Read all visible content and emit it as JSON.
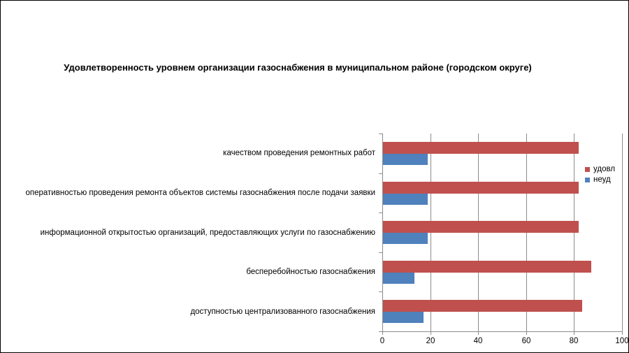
{
  "window": {
    "background": "#ffffff",
    "border_color": "#000000"
  },
  "chart_data": {
    "type": "bar",
    "orientation": "horizontal",
    "title": "Удовлетворенность уровнем организации газоснабжения в муниципальном районе (городском округе)",
    "categories": [
      "качеством проведения ремонтных работ",
      "оперативностью проведения ремонта объектов системы газоснабжения после подачи заявки",
      "информационной открытостью организаций, предоставляющих услуги по газоснабжению",
      "бесперебойностью газоснабжения",
      "доступностью централизованного газоснабжения"
    ],
    "series": [
      {
        "name": "удовл",
        "color": "#c0504d",
        "values": [
          81.5,
          81.5,
          81.5,
          87,
          83
        ]
      },
      {
        "name": "неуд",
        "color": "#4f81bd",
        "values": [
          18.5,
          18.5,
          18.5,
          13,
          17
        ]
      }
    ],
    "xlim": [
      0,
      100
    ],
    "x_ticks": [
      0,
      20,
      40,
      60,
      80,
      100
    ],
    "grid": "vertical",
    "legend_position": "right-inside",
    "axis_color": "#8c8c8c",
    "ylabel": "",
    "xlabel": ""
  }
}
